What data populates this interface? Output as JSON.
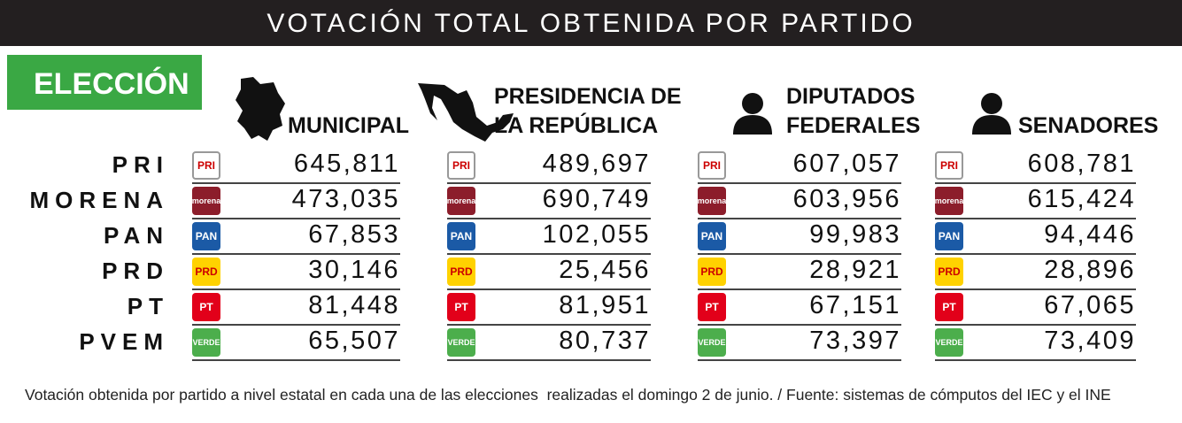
{
  "header": {
    "title": "VOTACIÓN TOTAL OBTENIDA POR PARTIDO"
  },
  "table": {
    "corner": "ELECCIÓN",
    "columns": [
      {
        "lines": [
          "MUNICIPAL"
        ],
        "icon": "state"
      },
      {
        "lines": [
          "PRESIDENCIA DE",
          "LA REPÚBLICA"
        ],
        "icon": "country"
      },
      {
        "lines": [
          "DIPUTADOS",
          "FEDERALES"
        ],
        "icon": "person"
      },
      {
        "lines": [
          "SENADORES"
        ],
        "icon": "person"
      }
    ],
    "rows": [
      {
        "party": "PRI",
        "logo": "PRI",
        "color": "#ffffff",
        "values": [
          "645,811",
          "489,697",
          "607,057",
          "608,781"
        ]
      },
      {
        "party": "MORENA",
        "logo": "morena",
        "color": "#8c1d2b",
        "values": [
          "473,035",
          "690,749",
          "603,956",
          "615,424"
        ]
      },
      {
        "party": "PAN",
        "logo": "PAN",
        "color": "#1b5aa6",
        "values": [
          "67,853",
          "102,055",
          "99,983",
          "94,446"
        ]
      },
      {
        "party": "PRD",
        "logo": "PRD",
        "color": "#ffd200",
        "values": [
          "30,146",
          "25,456",
          "28,921",
          "28,896"
        ]
      },
      {
        "party": "PT",
        "logo": "PT",
        "color": "#e2001a",
        "values": [
          "81,448",
          "81,951",
          "67,151",
          "67,065"
        ]
      },
      {
        "party": "PVEM",
        "logo": "VERDE",
        "color": "#4cae4c",
        "values": [
          "65,507",
          "80,737",
          "73,397",
          "73,409"
        ]
      }
    ]
  },
  "footer": {
    "note": "Votación obtenida por partido a nivel estatal en cada una de las elecciones  realizadas el domingo 2 de junio. / Fuente: sistemas de cómputos del IEC y el INE"
  }
}
